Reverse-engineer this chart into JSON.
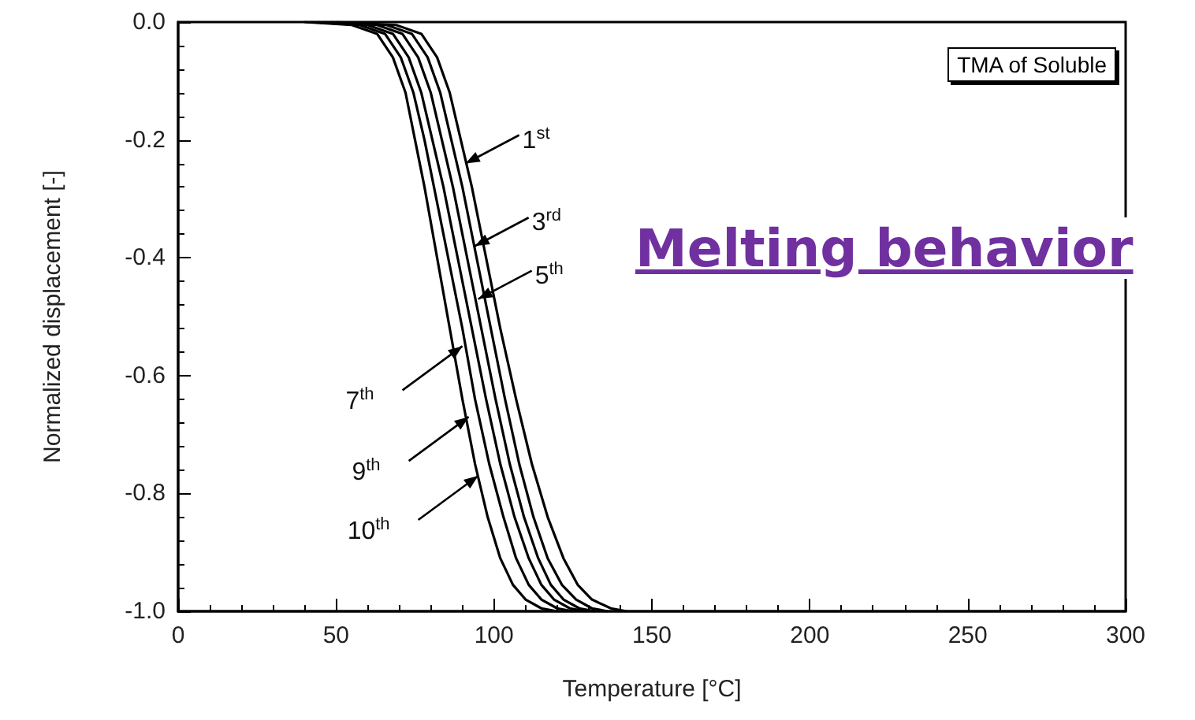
{
  "chart_data": {
    "type": "line",
    "xlabel": "Temperature [°C]",
    "ylabel": "Normalized displacement [-]",
    "series": [
      {
        "color": "#000000",
        "x": [
          40,
          55,
          63,
          68,
          72,
          75,
          78,
          82,
          86,
          90,
          94,
          98,
          102,
          106,
          110,
          115,
          120
        ],
        "values": [
          0,
          -0.005,
          -0.02,
          -0.06,
          -0.12,
          -0.2,
          -0.28,
          -0.4,
          -0.52,
          -0.64,
          -0.75,
          -0.84,
          -0.91,
          -0.955,
          -0.98,
          -0.995,
          -1
        ]
      },
      {
        "color": "#000000",
        "x": [
          42,
          57.5,
          65.5,
          70.5,
          74.5,
          78,
          81,
          85.5,
          90,
          94,
          98.5,
          103,
          107,
          111,
          115,
          120,
          125
        ],
        "values": [
          0,
          -0.005,
          -0.02,
          -0.06,
          -0.12,
          -0.2,
          -0.28,
          -0.4,
          -0.52,
          -0.64,
          -0.75,
          -0.84,
          -0.91,
          -0.955,
          -0.98,
          -0.995,
          -1
        ]
      },
      {
        "color": "#000000",
        "x": [
          44,
          60,
          68,
          73,
          77,
          80.5,
          84,
          88.5,
          93,
          97.5,
          102,
          106.5,
          111,
          115,
          119,
          124,
          129
        ],
        "values": [
          0,
          -0.005,
          -0.02,
          -0.06,
          -0.12,
          -0.2,
          -0.28,
          -0.4,
          -0.52,
          -0.64,
          -0.75,
          -0.84,
          -0.91,
          -0.955,
          -0.98,
          -0.995,
          -1
        ]
      },
      {
        "color": "#000000",
        "x": [
          46,
          63,
          71,
          76,
          80,
          83.5,
          87,
          91.5,
          96,
          100.5,
          105,
          109.5,
          114,
          118,
          122,
          127,
          132
        ],
        "values": [
          0,
          -0.005,
          -0.02,
          -0.06,
          -0.12,
          -0.2,
          -0.28,
          -0.4,
          -0.52,
          -0.64,
          -0.75,
          -0.84,
          -0.91,
          -0.955,
          -0.98,
          -0.995,
          -1
        ]
      },
      {
        "color": "#000000",
        "x": [
          48,
          66,
          74,
          79,
          83,
          86.5,
          90,
          94.5,
          99,
          103.5,
          108,
          112.5,
          117,
          121.5,
          126,
          131,
          136
        ],
        "values": [
          0,
          -0.005,
          -0.02,
          -0.06,
          -0.12,
          -0.2,
          -0.28,
          -0.4,
          -0.52,
          -0.64,
          -0.75,
          -0.84,
          -0.91,
          -0.955,
          -0.98,
          -0.995,
          -1
        ]
      },
      {
        "color": "#000000",
        "x": [
          50,
          69,
          77,
          82,
          86,
          89.5,
          93,
          97.5,
          102,
          107,
          112,
          117,
          122,
          126.5,
          131,
          137,
          142
        ],
        "values": [
          0,
          -0.005,
          -0.02,
          -0.06,
          -0.12,
          -0.2,
          -0.28,
          -0.4,
          -0.52,
          -0.64,
          -0.75,
          -0.84,
          -0.91,
          -0.955,
          -0.98,
          -0.995,
          -1
        ]
      }
    ],
    "xlim": [
      0,
      300
    ],
    "xticks": [
      0,
      50,
      100,
      150,
      200,
      250,
      300
    ],
    "ylim": [
      -1,
      0
    ],
    "yticks": [
      {
        "value": -1,
        "label": "-1.0"
      },
      {
        "value": -0.8,
        "label": "-0.8"
      },
      {
        "value": -0.6,
        "label": "-0.6"
      },
      {
        "value": -0.4,
        "label": "-0.4"
      },
      {
        "value": -0.2,
        "label": "-0.2"
      },
      {
        "value": 0,
        "label": "0.0"
      }
    ],
    "grid": false,
    "marker": "none",
    "line_style": "solid",
    "annotations": [
      "TMA of Soluble",
      "Melting behavior",
      {
        "text": "1$^{st}$",
        "x": 91,
        "y": -0.24
      },
      {
        "text": "3$^{rd}$",
        "x": 94,
        "y": -0.38
      },
      {
        "text": "5$^{th}$",
        "x": 95,
        "y": -0.47
      },
      {
        "text": "7$^{th}$",
        "x": 90,
        "y": -0.55
      },
      {
        "text": "9$^{th}$",
        "x": 92,
        "y": -0.67
      },
      {
        "text": "10$^{th}$",
        "x": 95,
        "y": -0.77
      }
    ]
  }
}
